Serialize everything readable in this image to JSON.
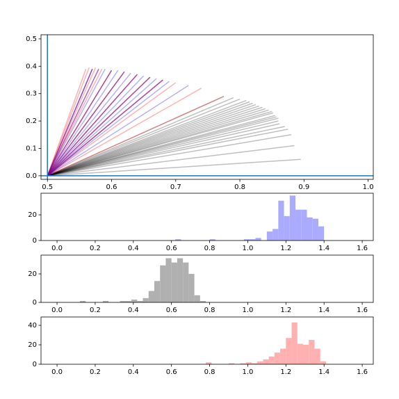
{
  "chart_data": [
    {
      "type": "line",
      "xlim": [
        0.49,
        1.008
      ],
      "ylim": [
        -0.013,
        0.515
      ],
      "xticks": [
        0.5,
        0.6,
        0.7,
        0.8,
        0.9,
        {
          "value": 1,
          "label": "1.0"
        }
      ],
      "yticks": [
        {
          "value": 0,
          "label": "0.0"
        },
        0.1,
        0.2,
        0.3,
        0.4,
        0.5
      ],
      "vlines": [
        0.5
      ],
      "hlines": [
        0
      ],
      "ref_color": "#1f77b4",
      "x0": 0.5,
      "y0": 0,
      "series": [
        {
          "color": "#000000",
          "alpha": 0.25,
          "x": [
            0.775,
            0.79,
            0.8,
            0.81,
            0.815,
            0.82,
            0.825,
            0.83,
            0.835,
            0.84,
            0.845,
            0.85,
            0.852,
            0.855,
            0.857,
            0.86,
            0.86,
            0.862,
            0.87,
            0.875,
            0.88,
            0.885,
            0.895
          ],
          "y": [
            0.29,
            0.285,
            0.28,
            0.275,
            0.27,
            0.265,
            0.26,
            0.255,
            0.25,
            0.245,
            0.24,
            0.235,
            0.23,
            0.22,
            0.215,
            0.21,
            0.2,
            0.19,
            0.18,
            0.17,
            0.15,
            0.11,
            0.06
          ]
        },
        {
          "color": "#ff0000",
          "alpha": 0.3,
          "x": [
            0.56,
            0.565,
            0.575,
            0.585,
            0.6,
            0.62,
            0.64,
            0.66,
            0.68,
            0.7,
            0.74,
            0.775
          ],
          "y": [
            0.39,
            0.395,
            0.395,
            0.39,
            0.385,
            0.38,
            0.37,
            0.36,
            0.35,
            0.34,
            0.32,
            0.29
          ]
        },
        {
          "color": "#0000ff",
          "alpha": 0.3,
          "x": [
            0.57,
            0.59,
            0.61,
            0.63,
            0.65,
            0.67,
            0.69,
            0.72
          ],
          "y": [
            0.39,
            0.39,
            0.385,
            0.375,
            0.365,
            0.355,
            0.345,
            0.33
          ]
        },
        {
          "color": "#800080",
          "alpha": 0.6,
          "x": [
            0.57,
            0.58,
            0.6,
            0.62,
            0.64,
            0.66,
            0.68
          ],
          "y": [
            0.39,
            0.39,
            0.385,
            0.38,
            0.37,
            0.36,
            0.35
          ]
        }
      ]
    },
    {
      "type": "histogram",
      "color": "#aaaaff",
      "xlim": [
        -0.084,
        1.658
      ],
      "ylim": [
        0,
        36.8
      ],
      "xticks": [
        {
          "value": 0,
          "label": "0.0"
        },
        0.2,
        0.4,
        0.6,
        0.8,
        {
          "value": 1,
          "label": "1.0"
        },
        1.2,
        1.4,
        1.6
      ],
      "yticks": [
        0,
        20
      ],
      "bins": [
        0.62,
        0.65,
        0.68,
        0.71,
        0.74,
        0.77,
        0.8,
        0.83,
        0.86,
        0.89,
        0.92,
        0.95,
        0.98,
        1.01,
        1.04,
        1.07,
        1.1,
        1.13,
        1.16,
        1.19,
        1.22,
        1.25,
        1.28,
        1.31,
        1.34,
        1.37,
        1.4
      ],
      "values": [
        1,
        0,
        0,
        0,
        0,
        0,
        1,
        0,
        0,
        0,
        0,
        0,
        1,
        1,
        2,
        0,
        7,
        9,
        31,
        19,
        35,
        24,
        24,
        18,
        17,
        11
      ]
    },
    {
      "type": "histogram",
      "color": "#b0b0b0",
      "xlim": [
        -0.084,
        1.658
      ],
      "ylim": [
        0,
        33.2
      ],
      "xticks": [
        {
          "value": 0,
          "label": "0.0"
        },
        0.2,
        0.4,
        0.6,
        0.8,
        {
          "value": 1,
          "label": "1.0"
        },
        1.2,
        1.4,
        1.6
      ],
      "yticks": [
        0,
        20
      ],
      "bins": [
        0.12,
        0.15,
        0.18,
        0.21,
        0.24,
        0.27,
        0.3,
        0.33,
        0.36,
        0.39,
        0.42,
        0.45,
        0.48,
        0.51,
        0.54,
        0.57,
        0.6,
        0.63,
        0.66,
        0.69,
        0.72,
        0.75,
        0.78,
        0.81
      ],
      "values": [
        1,
        0,
        0,
        0,
        1,
        0,
        0,
        1,
        1,
        2,
        1,
        3,
        8,
        15,
        26,
        31,
        28,
        31,
        28,
        20,
        5,
        1,
        0
      ]
    },
    {
      "type": "histogram",
      "color": "#ffb0b0",
      "xlim": [
        -0.084,
        1.658
      ],
      "ylim": [
        0,
        48.6
      ],
      "xticks": [
        {
          "value": 0,
          "label": "0.0"
        },
        0.2,
        0.4,
        0.6,
        0.8,
        {
          "value": 1,
          "label": "1.0"
        },
        1.2,
        1.4,
        1.6
      ],
      "yticks": [
        0,
        20,
        40
      ],
      "bins": [
        0.78,
        0.81,
        0.84,
        0.87,
        0.9,
        0.93,
        0.96,
        0.99,
        1.02,
        1.05,
        1.08,
        1.11,
        1.14,
        1.17,
        1.2,
        1.23,
        1.26,
        1.29,
        1.32,
        1.35,
        1.38,
        1.41,
        1.44
      ],
      "values": [
        2,
        0,
        0,
        0,
        1,
        0,
        1,
        2,
        1,
        3,
        5,
        8,
        12,
        16,
        27,
        43,
        21,
        20,
        25,
        16,
        3,
        0
      ]
    }
  ]
}
